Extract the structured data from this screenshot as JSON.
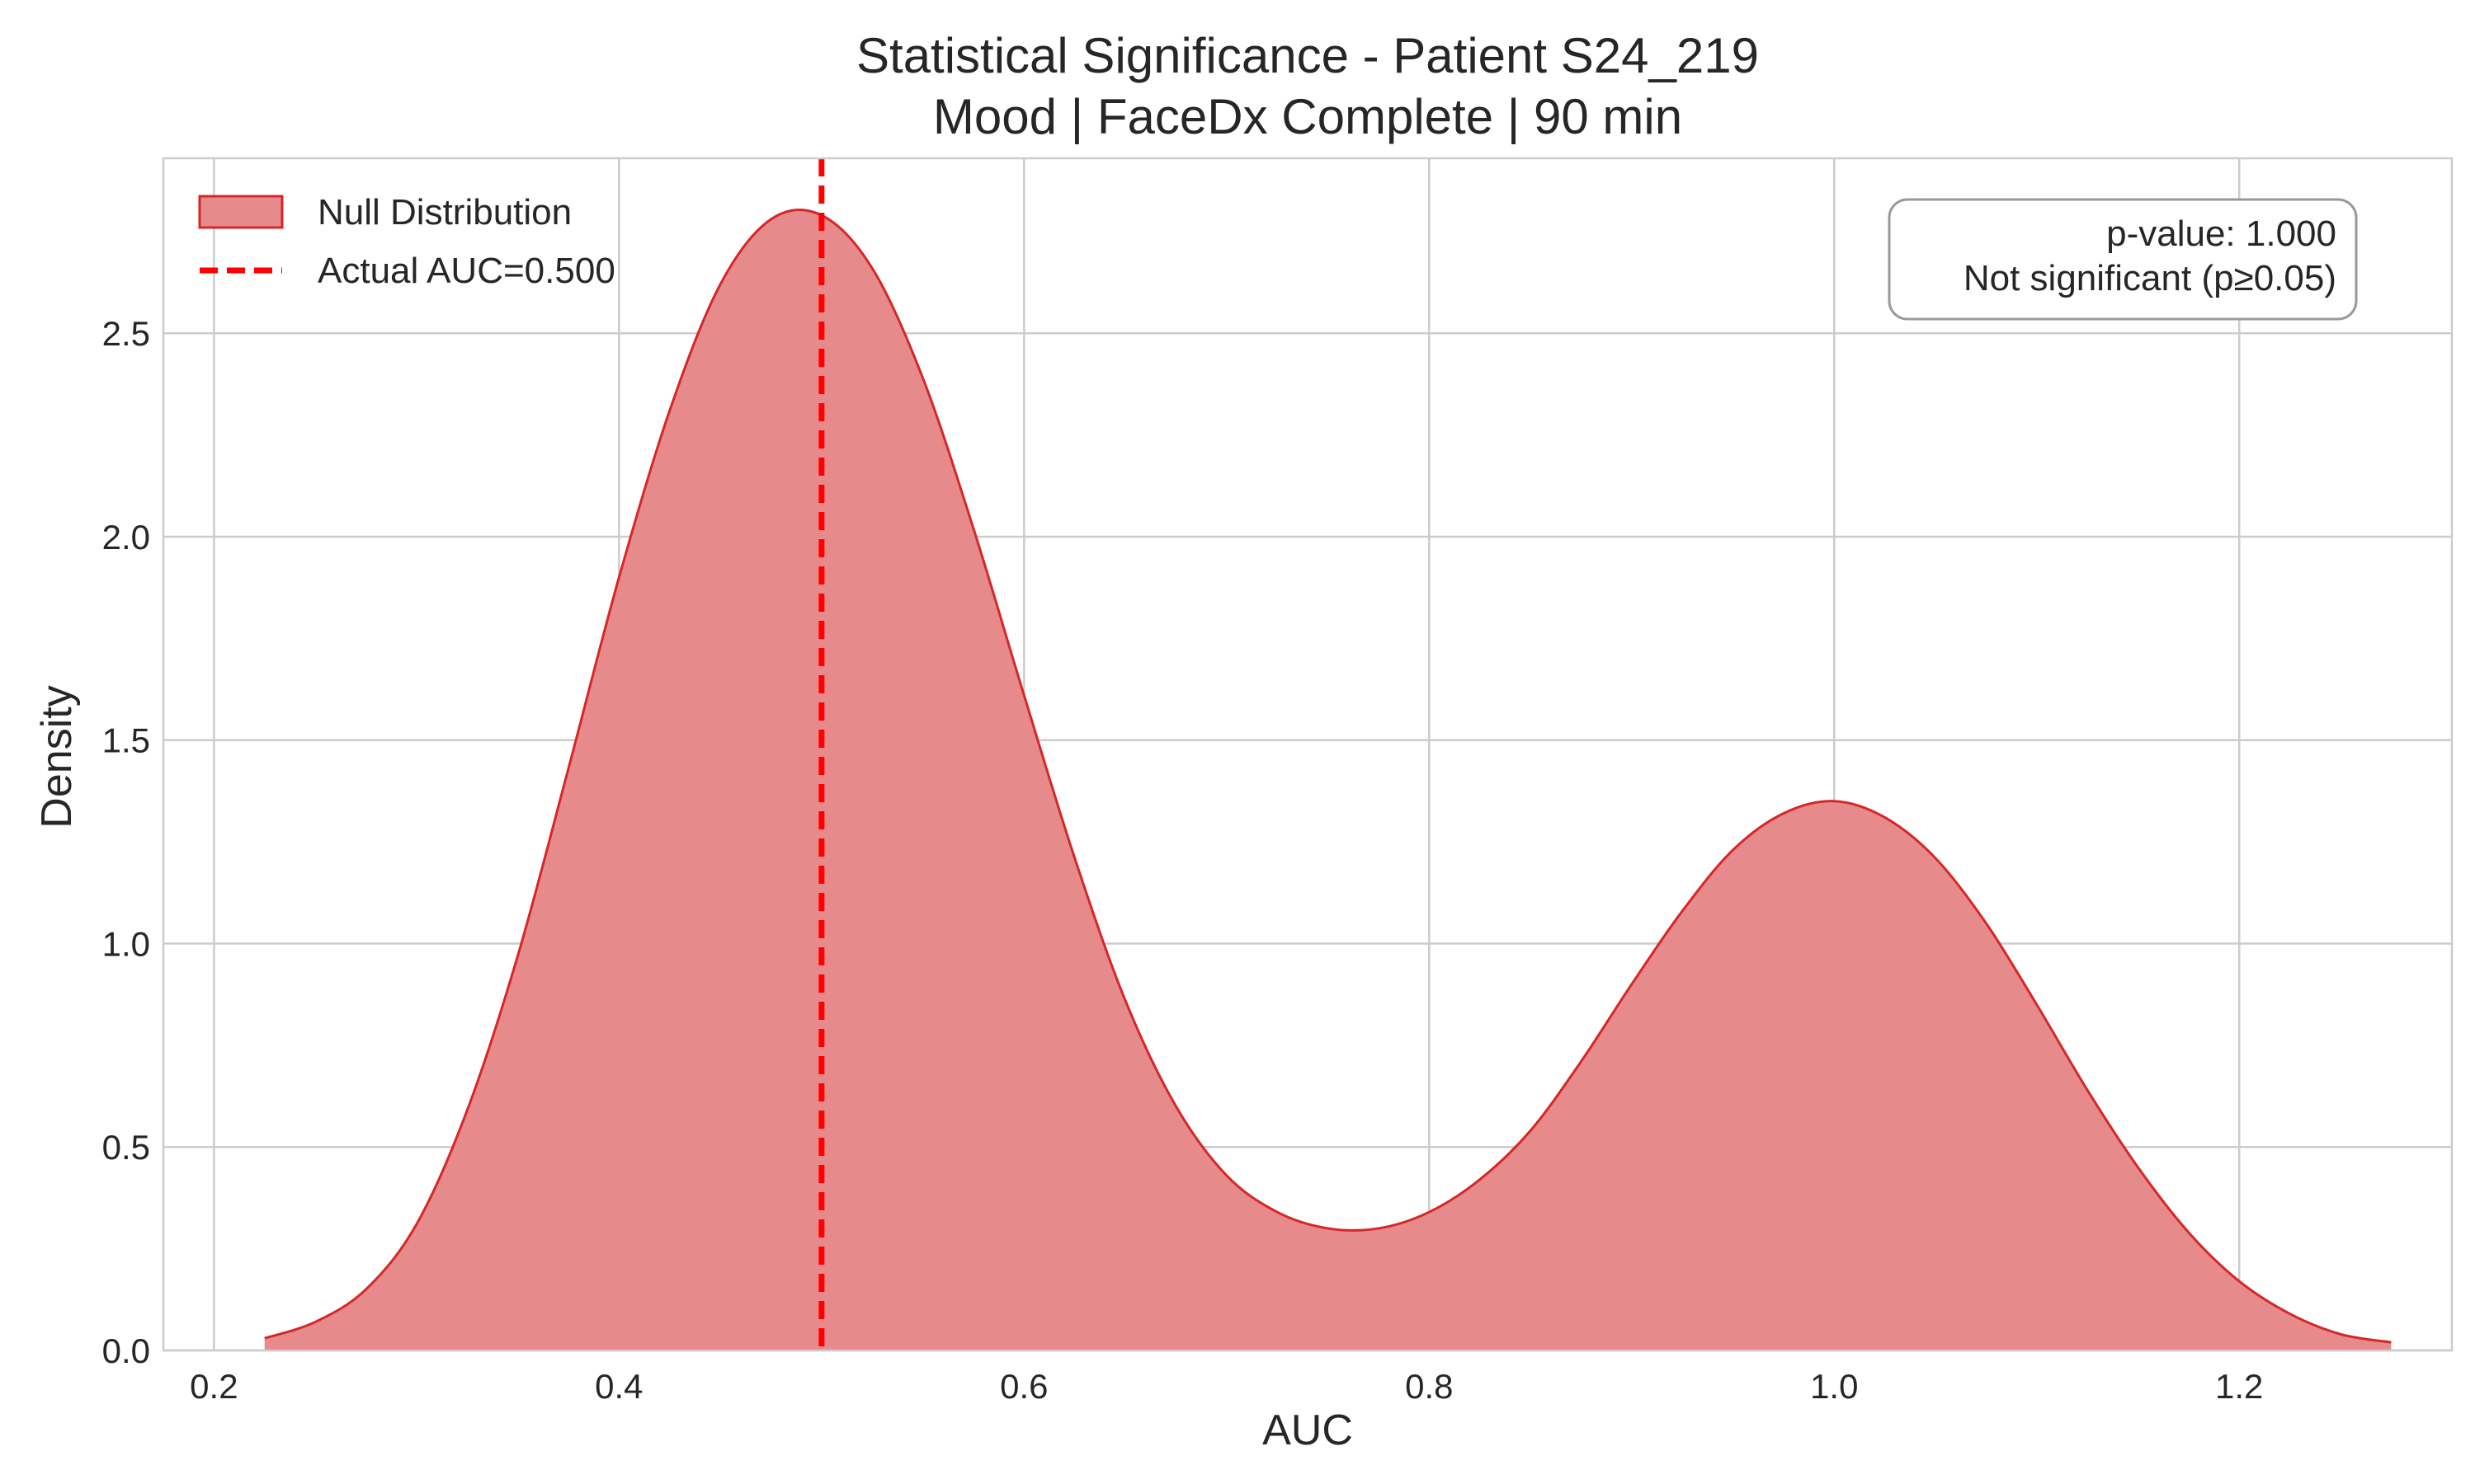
{
  "chart_data": {
    "type": "area",
    "title": "Statistical Significance - Patient S24_219",
    "subtitle": "Mood | FaceDx Complete | 90 min",
    "xlabel": "AUC",
    "ylabel": "Density",
    "xlim": [
      0.175,
      1.305
    ],
    "ylim": [
      0.0,
      2.93
    ],
    "xticks": [
      0.2,
      0.4,
      0.6,
      0.8,
      1.0,
      1.2
    ],
    "xtick_labels": [
      "0.2",
      "0.4",
      "0.6",
      "0.8",
      "1.0",
      "1.2"
    ],
    "yticks": [
      0.0,
      0.5,
      1.0,
      1.5,
      2.0,
      2.5
    ],
    "ytick_labels": [
      "0.0",
      "0.5",
      "1.0",
      "1.5",
      "2.0",
      "2.5"
    ],
    "grid": true,
    "legend_position": "top-left",
    "series": [
      {
        "name": "Null Distribution",
        "kind": "kde-fill",
        "color": "#d62728",
        "fill_color": "#e78a8b",
        "x": [
          0.225,
          0.25,
          0.275,
          0.3,
          0.325,
          0.35,
          0.375,
          0.4,
          0.425,
          0.45,
          0.475,
          0.5,
          0.525,
          0.55,
          0.575,
          0.6,
          0.625,
          0.65,
          0.675,
          0.7,
          0.725,
          0.75,
          0.775,
          0.8,
          0.825,
          0.85,
          0.875,
          0.9,
          0.925,
          0.95,
          0.975,
          1.0,
          1.025,
          1.05,
          1.075,
          1.1,
          1.125,
          1.15,
          1.175,
          1.2,
          1.225,
          1.25,
          1.275
        ],
        "y": [
          0.03,
          0.07,
          0.15,
          0.31,
          0.59,
          0.97,
          1.43,
          1.9,
          2.31,
          2.62,
          2.78,
          2.79,
          2.66,
          2.39,
          2.02,
          1.61,
          1.21,
          0.86,
          0.6,
          0.43,
          0.34,
          0.3,
          0.3,
          0.34,
          0.42,
          0.54,
          0.71,
          0.9,
          1.08,
          1.23,
          1.32,
          1.35,
          1.31,
          1.21,
          1.05,
          0.85,
          0.64,
          0.45,
          0.29,
          0.17,
          0.09,
          0.04,
          0.02
        ]
      },
      {
        "name": "Actual AUC=0.500",
        "kind": "vline",
        "x": 0.5,
        "color": "#ff0000",
        "style": "dashed"
      }
    ],
    "annotation": {
      "position": "top-right",
      "lines": [
        "p-value: 1.000",
        "Not significant (p≥0.05)"
      ]
    }
  }
}
